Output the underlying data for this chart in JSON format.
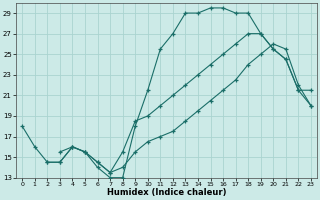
{
  "xlabel": "Humidex (Indice chaleur)",
  "xlim": [
    -0.5,
    23.5
  ],
  "ylim": [
    13,
    30
  ],
  "xticks": [
    0,
    1,
    2,
    3,
    4,
    5,
    6,
    7,
    8,
    9,
    10,
    11,
    12,
    13,
    14,
    15,
    16,
    17,
    18,
    19,
    20,
    21,
    22,
    23
  ],
  "yticks": [
    13,
    15,
    17,
    19,
    21,
    23,
    25,
    27,
    29
  ],
  "background_color": "#cceae7",
  "grid_color": "#aad4d0",
  "line_color": "#1a6e68",
  "line1_x": [
    0,
    1,
    2,
    3,
    4,
    5,
    6,
    7,
    8,
    9,
    10,
    11,
    12,
    13,
    14,
    15,
    16,
    17,
    18,
    19,
    20,
    21,
    22,
    23
  ],
  "line1_y": [
    18,
    16,
    14.5,
    14.5,
    16.0,
    15.5,
    14.0,
    13.0,
    13.0,
    18.0,
    21.5,
    25.5,
    27.0,
    29.0,
    29.0,
    29.5,
    29.5,
    29.0,
    29.0,
    27.0,
    25.5,
    24.5,
    21.5,
    20.0
  ],
  "line2_x": [
    3,
    4,
    5,
    6,
    7,
    8,
    9,
    10,
    11,
    12,
    13,
    14,
    15,
    16,
    17,
    18,
    19,
    20,
    21,
    22,
    23
  ],
  "line2_y": [
    15.5,
    16.0,
    15.5,
    14.5,
    13.5,
    15.5,
    18.5,
    19.0,
    20.0,
    21.0,
    22.0,
    23.0,
    24.0,
    25.0,
    26.0,
    27.0,
    27.0,
    25.5,
    24.5,
    21.5,
    21.5
  ],
  "line3_x": [
    2,
    3,
    4,
    5,
    6,
    7,
    8,
    9,
    10,
    11,
    12,
    13,
    14,
    15,
    16,
    17,
    18,
    19,
    20,
    21,
    22,
    23
  ],
  "line3_y": [
    14.5,
    14.5,
    16.0,
    15.5,
    14.5,
    13.5,
    14.0,
    15.5,
    16.5,
    17.0,
    17.5,
    18.5,
    19.5,
    20.5,
    21.5,
    22.5,
    24.0,
    25.0,
    26.0,
    25.5,
    22.0,
    20.0
  ]
}
